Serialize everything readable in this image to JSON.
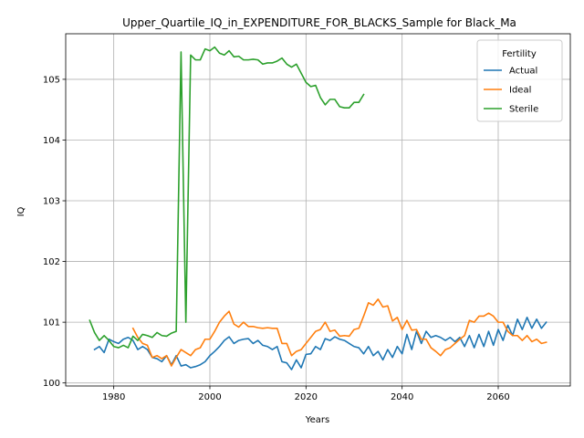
{
  "chart_data": {
    "type": "line",
    "title": "Upper_Quartile_IQ_in_EXPENDITURE_FOR_BLACKS_Sample for Black_Ma",
    "xlabel": "Years",
    "ylabel": "IQ",
    "xlim": [
      1970,
      2075
    ],
    "ylim": [
      99.95,
      105.75
    ],
    "xticks": [
      1980,
      2000,
      2020,
      2040,
      2060
    ],
    "yticks": [
      100,
      101,
      102,
      103,
      104,
      105
    ],
    "grid": true,
    "legend": {
      "title": "Fertility",
      "position": "top-right"
    },
    "series": [
      {
        "name": "Actual",
        "color": "#1f77b4",
        "x": [
          1976,
          1977,
          1978,
          1979,
          1980,
          1981,
          1982,
          1983,
          1984,
          1985,
          1986,
          1987,
          1988,
          1989,
          1990,
          1991,
          1992,
          1993,
          1994,
          1995,
          1996,
          1997,
          1998,
          1999,
          2000,
          2001,
          2002,
          2003,
          2004,
          2005,
          2006,
          2007,
          2008,
          2009,
          2010,
          2011,
          2012,
          2013,
          2014,
          2015,
          2016,
          2017,
          2018,
          2019,
          2020,
          2021,
          2022,
          2023,
          2024,
          2025,
          2026,
          2027,
          2028,
          2029,
          2030,
          2031,
          2032,
          2033,
          2034,
          2035,
          2036,
          2037,
          2038,
          2039,
          2040,
          2041,
          2042,
          2043,
          2044,
          2045,
          2046,
          2047,
          2048,
          2049,
          2050,
          2051,
          2052,
          2053,
          2054,
          2055,
          2056,
          2057,
          2058,
          2059,
          2060,
          2061,
          2062,
          2063,
          2064,
          2065,
          2066,
          2067,
          2068,
          2069,
          2070
        ],
        "y": [
          100.55,
          100.6,
          100.5,
          100.72,
          100.68,
          100.65,
          100.72,
          100.75,
          100.7,
          100.55,
          100.6,
          100.55,
          100.42,
          100.4,
          100.35,
          100.45,
          100.3,
          100.45,
          100.28,
          100.3,
          100.25,
          100.27,
          100.3,
          100.35,
          100.45,
          100.52,
          100.6,
          100.7,
          100.76,
          100.65,
          100.7,
          100.72,
          100.73,
          100.65,
          100.7,
          100.62,
          100.6,
          100.55,
          100.6,
          100.35,
          100.33,
          100.22,
          100.38,
          100.25,
          100.47,
          100.48,
          100.6,
          100.55,
          100.73,
          100.7,
          100.76,
          100.72,
          100.7,
          100.65,
          100.6,
          100.58,
          100.48,
          100.6,
          100.45,
          100.52,
          100.38,
          100.55,
          100.42,
          100.6,
          100.48,
          100.8,
          100.55,
          100.85,
          100.65,
          100.85,
          100.75,
          100.78,
          100.75,
          100.7,
          100.75,
          100.68,
          100.75,
          100.6,
          100.78,
          100.58,
          100.8,
          100.6,
          100.85,
          100.62,
          100.88,
          100.7,
          100.95,
          100.78,
          101.05,
          100.88,
          101.08,
          100.9,
          101.05,
          100.9,
          101.0
        ]
      },
      {
        "name": "Ideal",
        "color": "#ff7f0e",
        "x": [
          1984,
          1985,
          1986,
          1987,
          1988,
          1989,
          1990,
          1991,
          1992,
          1993,
          1994,
          1995,
          1996,
          1997,
          1998,
          1999,
          2000,
          2001,
          2002,
          2003,
          2004,
          2005,
          2006,
          2007,
          2008,
          2009,
          2010,
          2011,
          2012,
          2013,
          2014,
          2015,
          2016,
          2017,
          2018,
          2019,
          2020,
          2021,
          2022,
          2023,
          2024,
          2025,
          2026,
          2027,
          2028,
          2029,
          2030,
          2031,
          2032,
          2033,
          2034,
          2035,
          2036,
          2037,
          2038,
          2039,
          2040,
          2041,
          2042,
          2043,
          2044,
          2045,
          2046,
          2047,
          2048,
          2049,
          2050,
          2051,
          2052,
          2053,
          2054,
          2055,
          2056,
          2057,
          2058,
          2059,
          2060,
          2061,
          2062,
          2063,
          2064,
          2065,
          2066,
          2067,
          2068,
          2069,
          2070
        ],
        "y": [
          100.9,
          100.75,
          100.65,
          100.62,
          100.42,
          100.45,
          100.4,
          100.45,
          100.28,
          100.42,
          100.55,
          100.5,
          100.45,
          100.55,
          100.58,
          100.72,
          100.72,
          100.85,
          101.0,
          101.1,
          101.18,
          100.97,
          100.92,
          101.0,
          100.93,
          100.93,
          100.91,
          100.9,
          100.91,
          100.9,
          100.9,
          100.65,
          100.65,
          100.45,
          100.52,
          100.55,
          100.65,
          100.75,
          100.85,
          100.88,
          101.0,
          100.85,
          100.87,
          100.77,
          100.78,
          100.77,
          100.88,
          100.9,
          101.1,
          101.32,
          101.28,
          101.38,
          101.25,
          101.27,
          101.02,
          101.08,
          100.88,
          101.03,
          100.87,
          100.88,
          100.72,
          100.72,
          100.58,
          100.52,
          100.45,
          100.55,
          100.58,
          100.65,
          100.72,
          100.78,
          101.03,
          101.0,
          101.1,
          101.1,
          101.15,
          101.1,
          101.0,
          101.0,
          100.85,
          100.78,
          100.78,
          100.7,
          100.78,
          100.68,
          100.72,
          100.65,
          100.67
        ]
      },
      {
        "name": "Sterile",
        "color": "#2ca02c",
        "x": [
          1975,
          1976,
          1977,
          1978,
          1979,
          1980,
          1981,
          1982,
          1983,
          1984,
          1985,
          1986,
          1987,
          1988,
          1989,
          1990,
          1991,
          1992,
          1993,
          1994,
          1995,
          1996,
          1997,
          1998,
          1999,
          2000,
          2001,
          2002,
          2003,
          2004,
          2005,
          2006,
          2007,
          2008,
          2009,
          2010,
          2011,
          2012,
          2013,
          2014,
          2015,
          2016,
          2017,
          2018,
          2019,
          2020,
          2021,
          2022,
          2023,
          2024,
          2025,
          2026,
          2027,
          2028,
          2029,
          2030,
          2031,
          2032
        ],
        "y": [
          101.03,
          100.83,
          100.7,
          100.78,
          100.7,
          100.6,
          100.58,
          100.62,
          100.58,
          100.77,
          100.7,
          100.8,
          100.78,
          100.75,
          100.83,
          100.78,
          100.77,
          100.82,
          100.85,
          105.45,
          101.0,
          105.4,
          105.32,
          105.32,
          105.5,
          105.47,
          105.53,
          105.43,
          105.4,
          105.47,
          105.37,
          105.38,
          105.32,
          105.32,
          105.33,
          105.32,
          105.25,
          105.27,
          105.27,
          105.3,
          105.35,
          105.25,
          105.2,
          105.25,
          105.1,
          104.95,
          104.88,
          104.9,
          104.7,
          104.58,
          104.67,
          104.67,
          104.55,
          104.53,
          104.53,
          104.62,
          104.62,
          104.75
        ]
      }
    ]
  }
}
